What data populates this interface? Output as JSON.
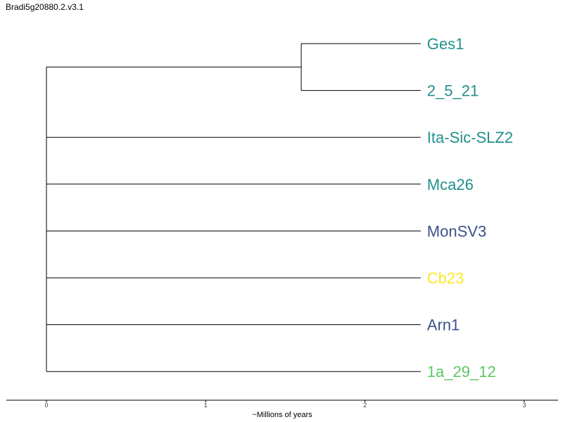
{
  "title": "Bradi5g20880.2.v3.1",
  "axis": {
    "label": "~Millions of years",
    "ticks": [
      0,
      1,
      2,
      3
    ],
    "range": [
      -0.25,
      3.25
    ]
  },
  "tree": {
    "root_depth": 0,
    "tip_depth": 2.35,
    "tips": [
      {
        "name": "Ges1",
        "color": "#21908C"
      },
      {
        "name": "2_5_21",
        "color": "#21908C"
      },
      {
        "name": "Ita-Sic-SLZ2",
        "color": "#21908C"
      },
      {
        "name": "Mca26",
        "color": "#21908C"
      },
      {
        "name": "MonSV3",
        "color": "#3B528B"
      },
      {
        "name": "Cb23",
        "color": "#FDE725"
      },
      {
        "name": "Arn1",
        "color": "#3B528B"
      },
      {
        "name": "1a_29_12",
        "color": "#5DC863"
      }
    ],
    "clades": [
      {
        "members": [
          0,
          1
        ],
        "depth": 1.6
      }
    ]
  }
}
